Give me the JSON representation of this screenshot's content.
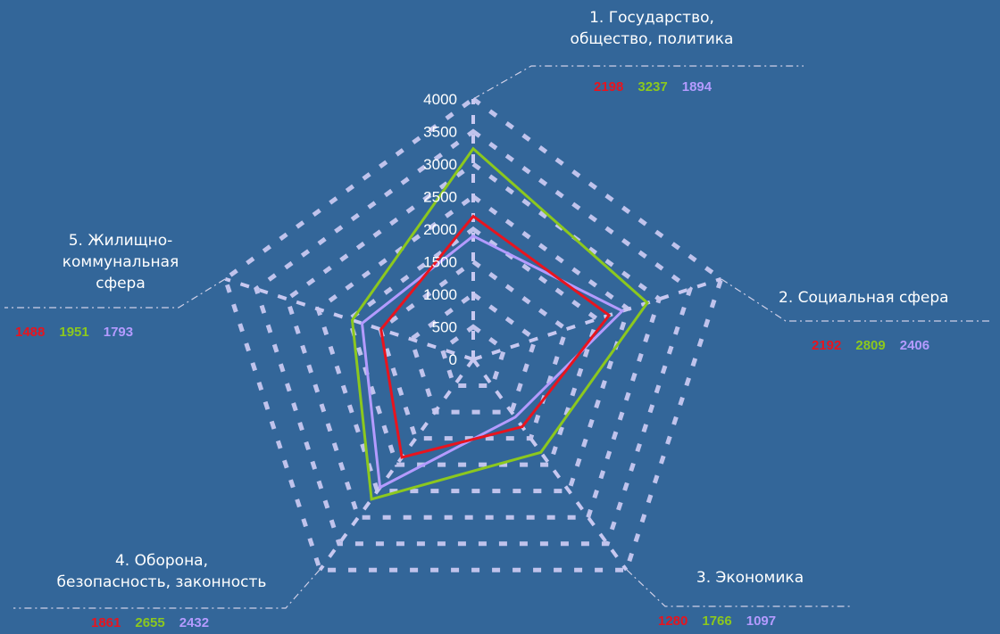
{
  "chart_data": {
    "type": "radar",
    "categories": [
      "1. Государство,\nобщество, политика",
      "2. Социальная  сфера",
      "3. Экономика",
      "4. Оборона,\nбезопасность, законность",
      "5. Жилищно-\nкоммунальная\nсфера"
    ],
    "series": [
      {
        "color": "#e8141e",
        "values": [
          2198,
          2192,
          1280,
          1861,
          1488
        ]
      },
      {
        "color": "#8cc81e",
        "values": [
          3237,
          2809,
          1766,
          2655,
          1951
        ]
      },
      {
        "color": "#b49bff",
        "values": [
          1894,
          2406,
          1097,
          2432,
          1793
        ]
      }
    ],
    "radial_ticks": [
      "0",
      "500",
      "1000",
      "1500",
      "2000",
      "2500",
      "3000",
      "3500",
      "4000"
    ],
    "rmax": 4000,
    "tick_step": 500,
    "grid_color": "#c8c8f0",
    "label_color": "#ffffff"
  },
  "value_labels": [
    [
      "2198",
      "3237",
      "1894"
    ],
    [
      "2192",
      "2809",
      "2406"
    ],
    [
      "1280",
      "1766",
      "1097"
    ],
    [
      "1861",
      "2655",
      "2432"
    ],
    [
      "1488",
      "1951",
      "1793"
    ]
  ]
}
